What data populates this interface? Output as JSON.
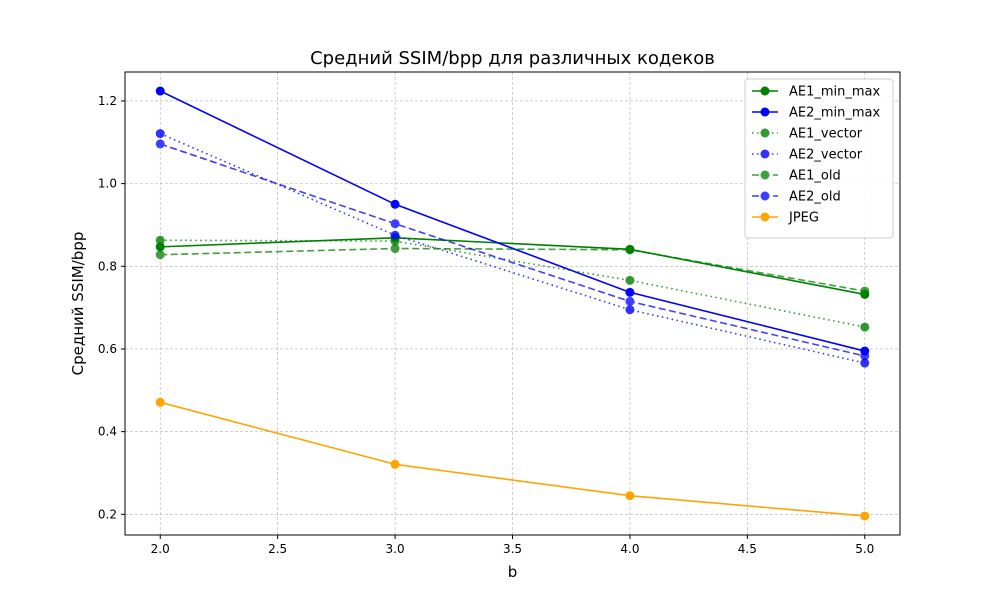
{
  "chart_data": {
    "type": "line",
    "title": "Средний SSIM/bpp для различных кодеков",
    "xlabel": "b",
    "ylabel": "Средний SSIM/bpp",
    "xlim": [
      1.85,
      5.15
    ],
    "ylim": [
      0.15,
      1.27
    ],
    "x_ticks": [
      2.0,
      2.5,
      3.0,
      3.5,
      4.0,
      4.5,
      5.0
    ],
    "x_tick_labels": [
      "2.0",
      "2.5",
      "3.0",
      "3.5",
      "4.0",
      "4.5",
      "5.0"
    ],
    "y_ticks": [
      0.2,
      0.4,
      0.6,
      0.8,
      1.0,
      1.2
    ],
    "y_tick_labels": [
      "0.2",
      "0.4",
      "0.6",
      "0.8",
      "1.0",
      "1.2"
    ],
    "grid": true,
    "legend_position": "upper right",
    "x": [
      2,
      3,
      4,
      5
    ],
    "series": [
      {
        "name": "AE1_min_max",
        "values": [
          0.847,
          0.869,
          0.841,
          0.732
        ],
        "color": "#008000",
        "style": "solid",
        "opacity": 1.0
      },
      {
        "name": "AE2_min_max",
        "values": [
          1.224,
          0.95,
          0.737,
          0.595
        ],
        "color": "#0000ff",
        "style": "solid",
        "opacity": 1.0
      },
      {
        "name": "AE1_vector",
        "values": [
          0.863,
          0.861,
          0.766,
          0.653
        ],
        "color": "#008000",
        "style": "dotted",
        "opacity": 0.8
      },
      {
        "name": "AE2_vector",
        "values": [
          1.121,
          0.875,
          0.695,
          0.566
        ],
        "color": "#0000ff",
        "style": "dotted",
        "opacity": 0.8
      },
      {
        "name": "AE1_old",
        "values": [
          0.828,
          0.843,
          0.84,
          0.74
        ],
        "color": "#008000",
        "style": "dashed",
        "opacity": 0.75
      },
      {
        "name": "AE2_old",
        "values": [
          1.096,
          0.903,
          0.715,
          0.583
        ],
        "color": "#0000ff",
        "style": "dashed",
        "opacity": 0.75
      },
      {
        "name": "JPEG",
        "values": [
          0.471,
          0.321,
          0.245,
          0.196
        ],
        "color": "#ffa500",
        "style": "solid",
        "opacity": 1.0
      }
    ]
  }
}
